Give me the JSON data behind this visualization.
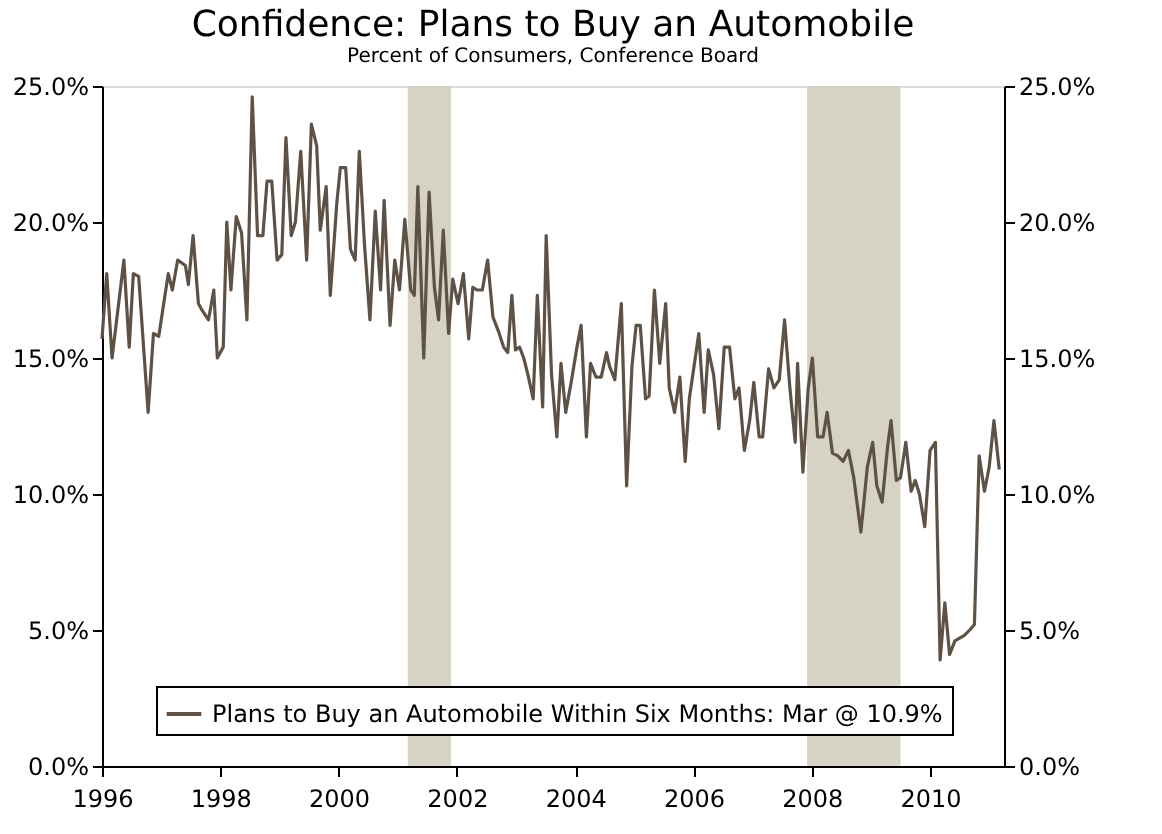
{
  "chart_data": {
    "type": "line",
    "title": "Confidence: Plans to Buy an Automobile",
    "subtitle": "Percent of Consumers, Conference Board",
    "x": [
      1996.0,
      1996.08,
      1996.17,
      1996.37,
      1996.46,
      1996.53,
      1996.62,
      1996.78,
      1996.87,
      1996.96,
      1997.12,
      1997.19,
      1997.28,
      1997.41,
      1997.46,
      1997.54,
      1997.63,
      1997.68,
      1997.8,
      1997.89,
      1997.95,
      1998.05,
      1998.11,
      1998.18,
      1998.27,
      1998.36,
      1998.45,
      1998.54,
      1998.63,
      1998.72,
      1998.79,
      1998.87,
      1998.96,
      1999.04,
      1999.11,
      1999.2,
      1999.27,
      1999.36,
      1999.46,
      1999.54,
      1999.63,
      1999.69,
      1999.79,
      1999.86,
      1999.97,
      2000.03,
      2000.12,
      2000.2,
      2000.28,
      2000.35,
      2000.44,
      2000.53,
      2000.62,
      2000.71,
      2000.77,
      2000.87,
      2000.95,
      2001.03,
      2001.12,
      2001.22,
      2001.28,
      2001.34,
      2001.44,
      2001.53,
      2001.62,
      2001.69,
      2001.77,
      2001.86,
      2001.93,
      2002.02,
      2002.11,
      2002.2,
      2002.27,
      2002.34,
      2002.43,
      2002.52,
      2002.61,
      2002.7,
      2002.79,
      2002.86,
      2002.93,
      2002.99,
      2003.06,
      2003.13,
      2003.2,
      2003.29,
      2003.36,
      2003.45,
      2003.51,
      2003.6,
      2003.69,
      2003.76,
      2003.84,
      2003.94,
      2004.03,
      2004.1,
      2004.19,
      2004.26,
      2004.35,
      2004.44,
      2004.53,
      2004.58,
      2004.67,
      2004.78,
      2004.87,
      2004.96,
      2005.03,
      2005.1,
      2005.19,
      2005.25,
      2005.34,
      2005.43,
      2005.53,
      2005.59,
      2005.68,
      2005.77,
      2005.86,
      2005.93,
      2006.09,
      2006.18,
      2006.25,
      2006.34,
      2006.43,
      2006.52,
      2006.61,
      2006.7,
      2006.77,
      2006.86,
      2006.95,
      2007.02,
      2007.11,
      2007.17,
      2007.27,
      2007.36,
      2007.45,
      2007.54,
      2007.63,
      2007.72,
      2007.76,
      2007.85,
      2007.94,
      2008.01,
      2008.1,
      2008.19,
      2008.26,
      2008.35,
      2008.44,
      2008.53,
      2008.62,
      2008.71,
      2008.83,
      2008.94,
      2009.03,
      2009.1,
      2009.19,
      2009.28,
      2009.34,
      2009.43,
      2009.5,
      2009.59,
      2009.68,
      2009.75,
      2009.82,
      2009.91,
      2010.0,
      2010.09,
      2010.17,
      2010.25,
      2010.33,
      2010.42,
      2010.5,
      2010.58,
      2010.67,
      2010.75,
      2010.83,
      2010.92,
      2011.0,
      2011.08,
      2011.17
    ],
    "series": [
      {
        "name": "Plans to Buy an Automobile Within Six Months: Mar @ 10.9%",
        "color": "#5e5247",
        "values": [
          15.7,
          18.1,
          15.0,
          18.6,
          15.4,
          18.1,
          18.0,
          13.0,
          15.9,
          15.8,
          18.1,
          17.5,
          18.6,
          18.4,
          17.7,
          19.5,
          17.0,
          16.8,
          16.4,
          17.5,
          15.0,
          15.4,
          20.0,
          17.5,
          20.2,
          19.6,
          16.4,
          24.6,
          19.5,
          19.5,
          21.5,
          21.5,
          18.6,
          18.8,
          23.1,
          19.5,
          20.0,
          22.6,
          18.6,
          23.6,
          22.8,
          19.7,
          21.3,
          17.3,
          20.7,
          22.0,
          22.0,
          19.0,
          18.6,
          22.6,
          19.1,
          16.4,
          20.4,
          17.5,
          20.8,
          16.2,
          18.6,
          17.5,
          20.1,
          17.5,
          17.3,
          21.3,
          15.0,
          21.1,
          17.6,
          16.4,
          19.7,
          15.9,
          17.9,
          17.0,
          18.1,
          15.7,
          17.6,
          17.5,
          17.5,
          18.6,
          16.5,
          16.0,
          15.4,
          15.2,
          17.3,
          15.3,
          15.4,
          15.0,
          14.4,
          13.5,
          17.3,
          13.2,
          19.5,
          14.4,
          12.1,
          14.8,
          13.0,
          14.2,
          15.4,
          16.2,
          12.1,
          14.8,
          14.3,
          14.3,
          15.2,
          14.7,
          14.2,
          17.0,
          10.3,
          14.7,
          16.2,
          16.2,
          13.5,
          13.6,
          17.5,
          14.8,
          17.0,
          13.9,
          13.0,
          14.3,
          11.2,
          13.5,
          15.9,
          13.0,
          15.3,
          14.4,
          12.4,
          15.4,
          15.4,
          13.5,
          13.9,
          11.6,
          12.7,
          14.1,
          12.1,
          12.1,
          14.6,
          13.9,
          14.2,
          16.4,
          13.9,
          11.9,
          14.8,
          10.8,
          13.9,
          15.0,
          12.1,
          12.1,
          13.0,
          11.5,
          11.4,
          11.2,
          11.6,
          10.6,
          8.6,
          11.0,
          11.9,
          10.3,
          9.7,
          11.7,
          12.7,
          10.5,
          10.6,
          11.9,
          10.1,
          10.5,
          10.0,
          8.8,
          11.6,
          11.9,
          3.9,
          6.0,
          4.1,
          4.6,
          4.7,
          4.8,
          5.0,
          5.2,
          11.4,
          10.1,
          11.0,
          12.7,
          10.9
        ]
      }
    ],
    "xlim": [
      1996,
      2011.25
    ],
    "xticks": [
      1996,
      1998,
      2000,
      2002,
      2004,
      2006,
      2008,
      2010
    ],
    "ylim": [
      0,
      25
    ],
    "yticks": [
      {
        "value": 0,
        "label": "0.0%"
      },
      {
        "value": 5,
        "label": "5.0%"
      },
      {
        "value": 10,
        "label": "10.0%"
      },
      {
        "value": 15,
        "label": "15.0%"
      },
      {
        "value": 20,
        "label": "20.0%"
      },
      {
        "value": 25,
        "label": "25.0%"
      }
    ],
    "y2lim": [
      0,
      25
    ],
    "y2ticks": [
      {
        "value": 0,
        "label": "0.0%"
      },
      {
        "value": 5,
        "label": "5.0%"
      },
      {
        "value": 10,
        "label": "10.0%"
      },
      {
        "value": 15,
        "label": "15.0%"
      },
      {
        "value": 20,
        "label": "20.0%"
      },
      {
        "value": 25,
        "label": "25.0%"
      }
    ],
    "bands": [
      {
        "axis": "x",
        "from": 2001.17,
        "to": 2001.9,
        "color": "#d6d2c4"
      },
      {
        "axis": "x",
        "from": 2007.92,
        "to": 2009.5,
        "color": "#d6d2c4"
      }
    ],
    "legend": "bottom",
    "grid": false,
    "marker": "none",
    "line_style": "solid"
  }
}
